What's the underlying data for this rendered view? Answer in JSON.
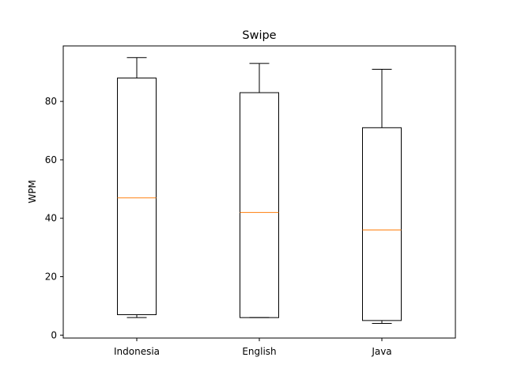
{
  "chart_data": {
    "type": "box",
    "title": "Swipe",
    "xlabel": "",
    "ylabel": "WPM",
    "categories": [
      "Indonesia",
      "English",
      "Java"
    ],
    "boxes": [
      {
        "category": "Indonesia",
        "whisker_low": 6,
        "q1": 7,
        "median": 47,
        "q3": 88,
        "whisker_high": 95
      },
      {
        "category": "English",
        "whisker_low": 6,
        "q1": 6,
        "median": 42,
        "q3": 83,
        "whisker_high": 93
      },
      {
        "category": "Java",
        "whisker_low": 4,
        "q1": 5,
        "median": 36,
        "q3": 71,
        "whisker_high": 91
      }
    ],
    "y_ticks": [
      0,
      20,
      40,
      60,
      80
    ],
    "y_tick_labels": [
      "0",
      "20",
      "40",
      "60",
      "80"
    ],
    "ylim": [
      -1,
      99
    ],
    "grid": false,
    "colors": {
      "box": "#000000",
      "median": "#ff7f0e"
    }
  }
}
